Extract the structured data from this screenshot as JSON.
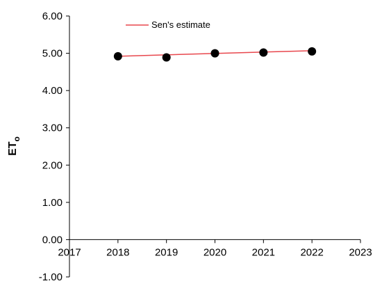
{
  "chart_data": {
    "type": "scatter",
    "title": "",
    "xlabel": "",
    "ylabel": "ET",
    "ylabel_subscript": "o",
    "xlim": [
      2017,
      2023
    ],
    "ylim": [
      -1.0,
      6.0
    ],
    "x_ticks": [
      "2017",
      "2018",
      "2019",
      "2020",
      "2021",
      "2022",
      "2023"
    ],
    "y_ticks": [
      "-1.00",
      "0.00",
      "1.00",
      "2.00",
      "3.00",
      "4.00",
      "5.00",
      "6.00"
    ],
    "x_tick_values": [
      2017,
      2018,
      2019,
      2020,
      2021,
      2022,
      2023
    ],
    "y_tick_values": [
      -1,
      0,
      1,
      2,
      3,
      4,
      5,
      6
    ],
    "grid": false,
    "legend_position": "top-center",
    "series": [
      {
        "kind": "points",
        "x": [
          2018,
          2019,
          2020,
          2021,
          2022
        ],
        "y": [
          4.92,
          4.89,
          5.0,
          5.02,
          5.05
        ],
        "color": "#000000"
      },
      {
        "kind": "line",
        "name": "Sen's estimate",
        "x": [
          2018,
          2022
        ],
        "y": [
          4.92,
          5.07
        ],
        "color": "#e8474d"
      }
    ]
  }
}
